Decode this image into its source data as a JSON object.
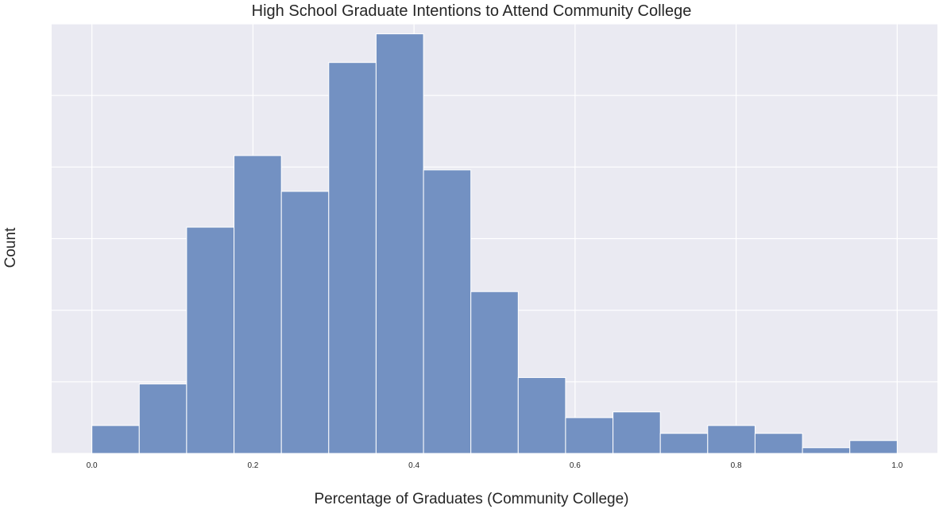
{
  "chart_data": {
    "type": "bar",
    "title": "High School Graduate Intentions to Attend Community College",
    "xlabel": "Percentage of Graduates (Community College)",
    "ylabel": "Count",
    "bin_edges": [
      0.0,
      0.0588,
      0.1176,
      0.1765,
      0.2353,
      0.2941,
      0.3529,
      0.4118,
      0.4706,
      0.5294,
      0.5882,
      0.6471,
      0.7059,
      0.7647,
      0.8235,
      0.8824,
      0.9412,
      1.0
    ],
    "values": [
      39,
      97,
      316,
      416,
      366,
      546,
      586,
      396,
      226,
      106,
      50,
      58,
      28,
      39,
      28,
      8,
      18
    ],
    "xlim": [
      -0.05,
      1.05
    ],
    "ylim": [
      0,
      600
    ],
    "x_ticks": [
      "0.0",
      "0.2",
      "0.4",
      "0.6",
      "0.8",
      "1.0"
    ],
    "y_ticks_shown": false,
    "grid": true,
    "colors": {
      "background": "#eaeaf2",
      "bar": "#7391c2",
      "bar_edge": "#ffffff",
      "grid": "#ffffff"
    }
  }
}
